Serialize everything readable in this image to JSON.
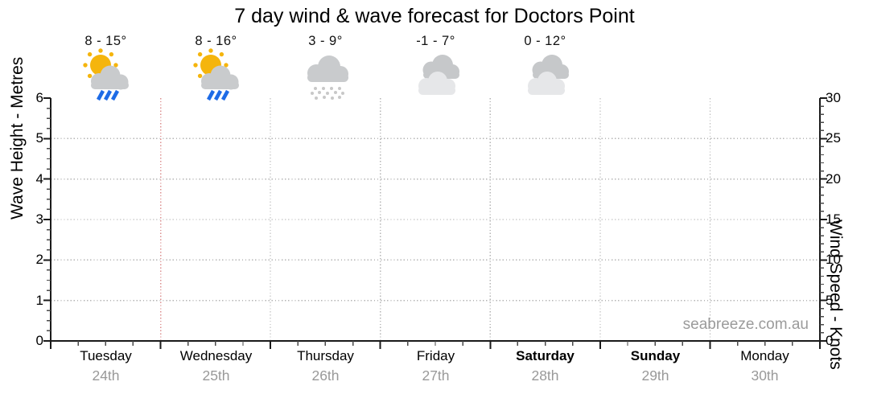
{
  "title": "7 day wind & wave forecast for Doctors Point",
  "watermark": "seabreeze.com.au",
  "days": [
    {
      "name": "Tuesday",
      "date": "24th",
      "temp": "8 - 15°",
      "icon": "sun-shower",
      "weekend": false
    },
    {
      "name": "Wednesday",
      "date": "25th",
      "temp": "8 - 16°",
      "icon": "sun-shower",
      "weekend": false
    },
    {
      "name": "Thursday",
      "date": "26th",
      "temp": "3 - 9°",
      "icon": "cloud-drizzle",
      "weekend": false
    },
    {
      "name": "Friday",
      "date": "27th",
      "temp": "-1 - 7°",
      "icon": "cloudy",
      "weekend": false
    },
    {
      "name": "Saturday",
      "date": "28th",
      "temp": "0 - 12°",
      "icon": "cloudy",
      "weekend": true
    },
    {
      "name": "Sunday",
      "date": "29th",
      "temp": "",
      "icon": "",
      "weekend": true
    },
    {
      "name": "Monday",
      "date": "30th",
      "temp": "",
      "icon": "",
      "weekend": false
    }
  ],
  "left_axis": {
    "label": "Wave Height - Metres",
    "ticks": [
      "0",
      "1",
      "2",
      "3",
      "4",
      "5",
      "6"
    ],
    "range": [
      0,
      6
    ]
  },
  "right_axis": {
    "label": "Wind Speed - Knots",
    "ticks": [
      "0",
      "5",
      "10",
      "15",
      "20",
      "25",
      "30"
    ],
    "range": [
      0,
      30
    ]
  },
  "colors": {
    "sun": "#f5b50d",
    "cloud": "#c9cbcd",
    "cloud_dark": "#c6c8ca",
    "cloud_light": "#e6e7e9",
    "rain": "#1e6be6",
    "dots": "#c8c8c8",
    "grid": "#b4b4b4",
    "divider": "#dc9090",
    "datecol": "#999999",
    "watermark": "#9b9b9b"
  },
  "chart_data": {
    "type": "line",
    "title": "7 day wind & wave forecast for Doctors Point",
    "categories": [
      "Tuesday 24th",
      "Wednesday 25th",
      "Thursday 26th",
      "Friday 27th",
      "Saturday 28th",
      "Sunday 29th",
      "Monday 30th"
    ],
    "series": [],
    "left_axis": {
      "label": "Wave Height - Metres",
      "range": [
        0,
        6
      ],
      "major_tick": 1,
      "minor_tick": 0.25
    },
    "right_axis": {
      "label": "Wind Speed - Knots",
      "range": [
        0,
        30
      ],
      "major_tick": 5,
      "minor_tick": 1
    },
    "temperature_ranges": [
      {
        "day": "Tuesday",
        "low": 8,
        "high": 15
      },
      {
        "day": "Wednesday",
        "low": 8,
        "high": 16
      },
      {
        "day": "Thursday",
        "low": 3,
        "high": 9
      },
      {
        "day": "Friday",
        "low": -1,
        "high": 7
      },
      {
        "day": "Saturday",
        "low": 0,
        "high": 12
      }
    ],
    "conditions": [
      "sun-shower",
      "sun-shower",
      "cloud-drizzle",
      "cloudy",
      "cloudy"
    ],
    "grid": true,
    "legend": false
  }
}
